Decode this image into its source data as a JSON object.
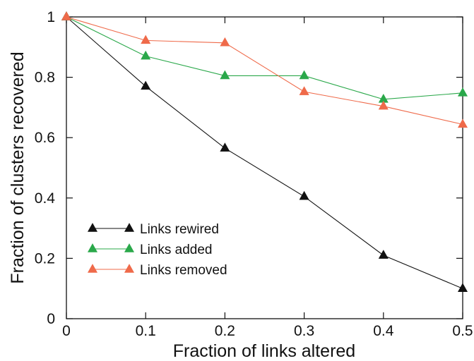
{
  "chart_data": {
    "type": "line",
    "xlabel": "Fraction of links altered",
    "ylabel": "Fraction of clusters recovered",
    "xlim": [
      0,
      0.5
    ],
    "ylim": [
      0,
      1
    ],
    "xticks": [
      "0",
      "0.1",
      "0.2",
      "0.3",
      "0.4",
      "0.5"
    ],
    "yticks": [
      "0",
      "0.2",
      "0.4",
      "0.6",
      "0.8",
      "1"
    ],
    "x": [
      0,
      0.1,
      0.2,
      0.3,
      0.4,
      0.5
    ],
    "grid": false,
    "legend_position": "bottom-left",
    "series": [
      {
        "name": "Links rewired",
        "color": "#111111",
        "marker": "triangle",
        "values": [
          1.0,
          0.77,
          0.565,
          0.405,
          0.21,
          0.1
        ]
      },
      {
        "name": "Links added",
        "color": "#2aa84a",
        "marker": "triangle",
        "values": [
          1.0,
          0.87,
          0.805,
          0.805,
          0.727,
          0.748
        ]
      },
      {
        "name": "Links removed",
        "color": "#ef6a4a",
        "marker": "triangle",
        "values": [
          1.0,
          0.922,
          0.914,
          0.752,
          0.704,
          0.644
        ]
      }
    ]
  }
}
